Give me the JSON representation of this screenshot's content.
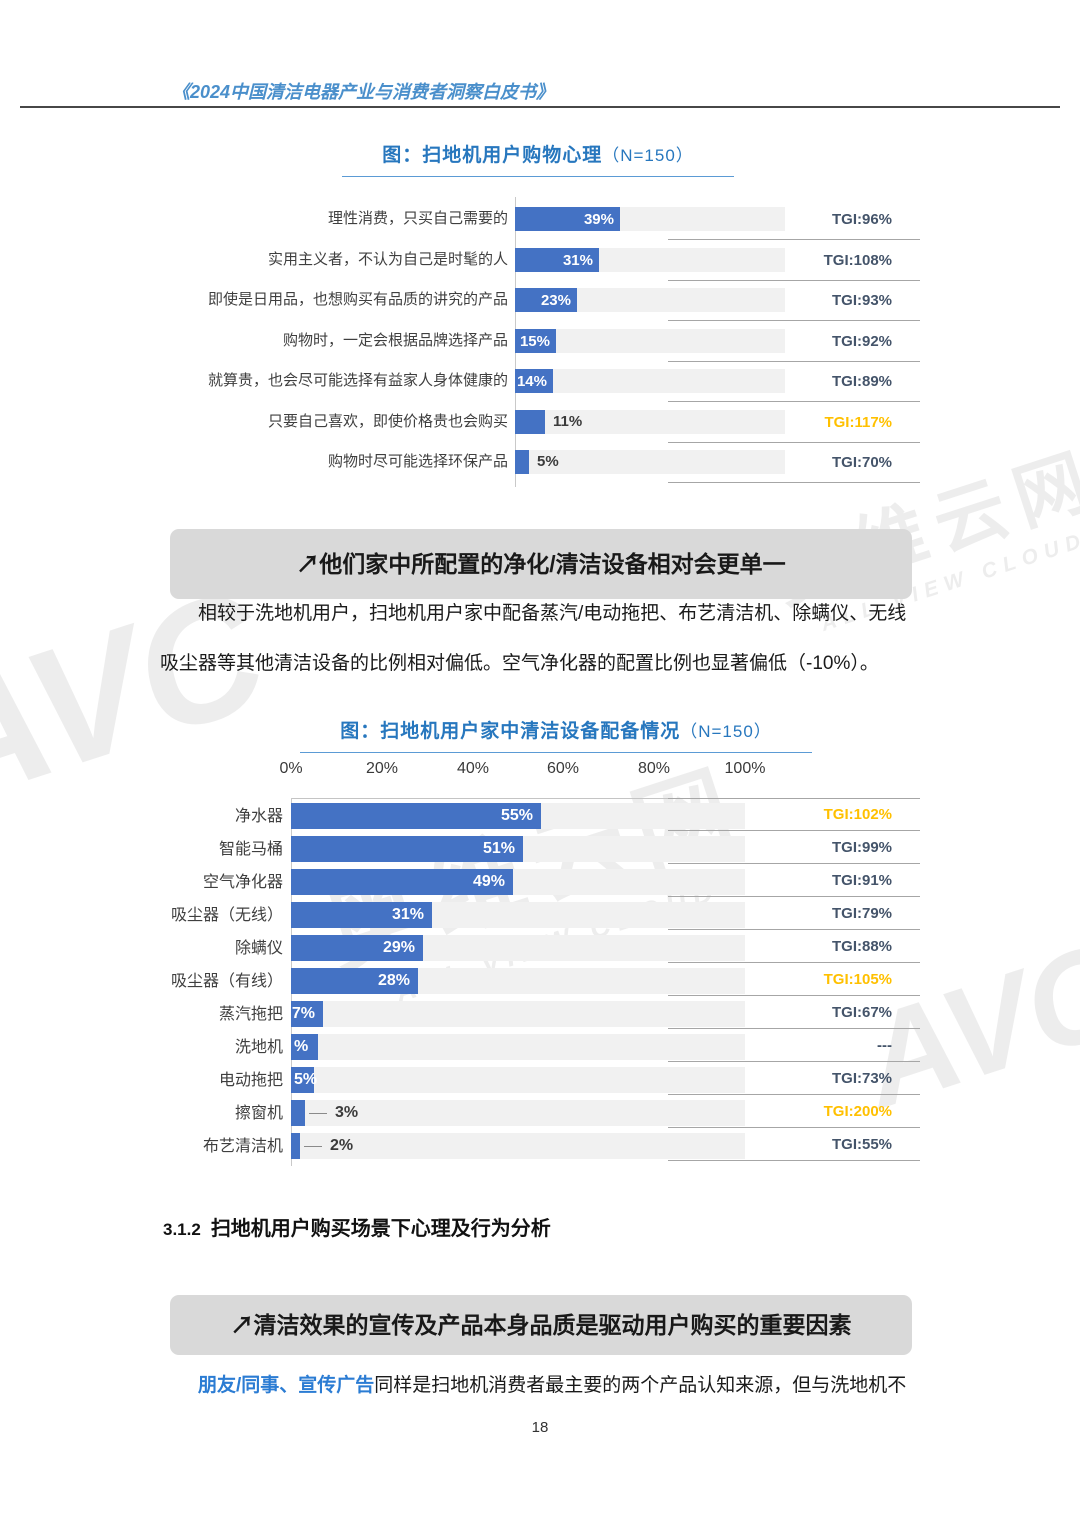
{
  "page": {
    "header_title": "《2024中国清洁电器产业与消费者洞察白皮书》",
    "page_number": "18"
  },
  "watermark": {
    "brand": "AVC",
    "cjk": "奥维云网",
    "latin": "ALL VIEW CLOUD"
  },
  "colors": {
    "bar_blue": "#4472C4",
    "bar_track": "#F1F1F1",
    "tgi_normal": "#44546A",
    "tgi_highlight": "#FFC000",
    "chart_title_blue": "#2777BE",
    "header_blue": "#4A8FCB",
    "inline_blue": "#2B7CD3",
    "heading_box_gray": "#D9D9D9"
  },
  "chart1": {
    "title_main": "图：扫地机用户购物心理",
    "title_n": "（N=150）",
    "rows": [
      {
        "label": "理性消费，只买自己需要的",
        "value": 39,
        "display": "39%",
        "placement": "inside",
        "tgi": "TGI:96%",
        "tgi_highlight": false
      },
      {
        "label": "实用主义者，不认为自己是时髦的人",
        "value": 31,
        "display": "31%",
        "placement": "inside",
        "tgi": "TGI:108%",
        "tgi_highlight": false
      },
      {
        "label": "即使是日用品，也想购买有品质的讲究的产品",
        "value": 23,
        "display": "23%",
        "placement": "inside",
        "tgi": "TGI:93%",
        "tgi_highlight": false
      },
      {
        "label": "购物时，一定会根据品牌选择产品",
        "value": 15,
        "display": "15%",
        "placement": "inside",
        "tgi": "TGI:92%",
        "tgi_highlight": false
      },
      {
        "label": "就算贵，也会尽可能选择有益家人身体健康的",
        "value": 14,
        "display": "14%",
        "placement": "inside",
        "tgi": "TGI:89%",
        "tgi_highlight": false
      },
      {
        "label": "只要自己喜欢，即使价格贵也会购买",
        "value": 11,
        "display": "11%",
        "placement": "outside",
        "tgi": "TGI:117%",
        "tgi_highlight": true
      },
      {
        "label": "购物时尽可能选择环保产品",
        "value": 5,
        "display": "5%",
        "placement": "outside",
        "tgi": "TGI:70%",
        "tgi_highlight": false
      }
    ]
  },
  "heading_box_1": "↗他们家中所配置的净化/清洁设备相对会更单一",
  "paragraph_1_line1": "相较于洗地机用户，扫地机用户家中配备蒸汽/电动拖把、布艺清洁机、除螨仪、无线",
  "paragraph_1_line2": "吸尘器等其他清洁设备的比例相对偏低。空气净化器的配置比例也显著偏低（-10%）。",
  "chart2": {
    "title_main": "图：扫地机用户家中清洁设备配备情况",
    "title_n": "（N=150）",
    "axis_ticks": [
      "0%",
      "20%",
      "40%",
      "60%",
      "80%",
      "100%"
    ],
    "rows": [
      {
        "label": "净水器",
        "value": 55,
        "display": "55%",
        "placement": "inside",
        "tgi": "TGI:102%",
        "tgi_highlight": true
      },
      {
        "label": "智能马桶",
        "value": 51,
        "display": "51%",
        "placement": "inside",
        "tgi": "TGI:99%",
        "tgi_highlight": false
      },
      {
        "label": "空气净化器",
        "value": 49,
        "display": "49%",
        "placement": "inside",
        "tgi": "TGI:91%",
        "tgi_highlight": false
      },
      {
        "label": "吸尘器（无线）",
        "value": 31,
        "display": "31%",
        "placement": "inside",
        "tgi": "TGI:79%",
        "tgi_highlight": false
      },
      {
        "label": "除螨仪",
        "value": 29,
        "display": "29%",
        "placement": "inside",
        "tgi": "TGI:88%",
        "tgi_highlight": false
      },
      {
        "label": "吸尘器（有线）",
        "value": 28,
        "display": "28%",
        "placement": "inside",
        "tgi": "TGI:105%",
        "tgi_highlight": true
      },
      {
        "label": "蒸汽拖把",
        "value": 7,
        "display": "7%",
        "placement": "inside",
        "tgi": "TGI:67%",
        "tgi_highlight": false
      },
      {
        "label": "洗地机",
        "value": 6,
        "display": "%",
        "placement": "inside-left",
        "tgi": "---",
        "tgi_highlight": false
      },
      {
        "label": "电动拖把",
        "value": 5,
        "display": "5%",
        "placement": "inside-left",
        "tgi": "TGI:73%",
        "tgi_highlight": false
      },
      {
        "label": "擦窗机",
        "value": 3,
        "display": "3%",
        "placement": "callout",
        "tgi": "TGI:200%",
        "tgi_highlight": true
      },
      {
        "label": "布艺清洁机",
        "value": 2,
        "display": "2%",
        "placement": "callout",
        "tgi": "TGI:55%",
        "tgi_highlight": false
      }
    ]
  },
  "section": {
    "number": "3.1.2",
    "title": "扫地机用户购买场景下心理及行为分析"
  },
  "heading_box_2": "↗清洁效果的宣传及产品本身品质是驱动用户购买的重要因素",
  "paragraph_2_highlight": "朋友/同事、宣传广告",
  "paragraph_2_rest": "同样是扫地机消费者最主要的两个产品认知来源，但与洗地机不",
  "chart_data": [
    {
      "type": "bar",
      "orientation": "horizontal",
      "title": "图：扫地机用户购物心理（N=150）",
      "categories": [
        "理性消费，只买自己需要的",
        "实用主义者，不认为自己是时髦的人",
        "即使是日用品，也想购买有品质的讲究的产品",
        "购物时，一定会根据品牌选择产品",
        "就算贵，也会尽可能选择有益家人身体健康的",
        "只要自己喜欢，即使价格贵也会购买",
        "购物时尽可能选择环保产品"
      ],
      "values": [
        39,
        31,
        23,
        15,
        14,
        11,
        5
      ],
      "value_unit": "%",
      "xlim": [
        0,
        100
      ],
      "grid": false,
      "secondary_series": {
        "name": "TGI",
        "values": [
          96,
          108,
          93,
          92,
          89,
          117,
          70
        ],
        "unit": "%",
        "highlighted": [
          117
        ]
      }
    },
    {
      "type": "bar",
      "orientation": "horizontal",
      "title": "图：扫地机用户家中清洁设备配备情况（N=150）",
      "categories": [
        "净水器",
        "智能马桶",
        "空气净化器",
        "吸尘器（无线）",
        "除螨仪",
        "吸尘器（有线）",
        "蒸汽拖把",
        "洗地机",
        "电动拖把",
        "擦窗机",
        "布艺清洁机"
      ],
      "values": [
        55,
        51,
        49,
        31,
        29,
        28,
        7,
        6,
        5,
        3,
        2
      ],
      "value_unit": "%",
      "xlim": [
        0,
        100
      ],
      "xticks": [
        "0%",
        "20%",
        "40%",
        "60%",
        "80%",
        "100%"
      ],
      "grid": false,
      "secondary_series": {
        "name": "TGI",
        "values": [
          102,
          99,
          91,
          79,
          88,
          105,
          67,
          "---",
          73,
          200,
          55
        ],
        "unit": "%",
        "highlighted": [
          102,
          105,
          200
        ]
      }
    }
  ]
}
